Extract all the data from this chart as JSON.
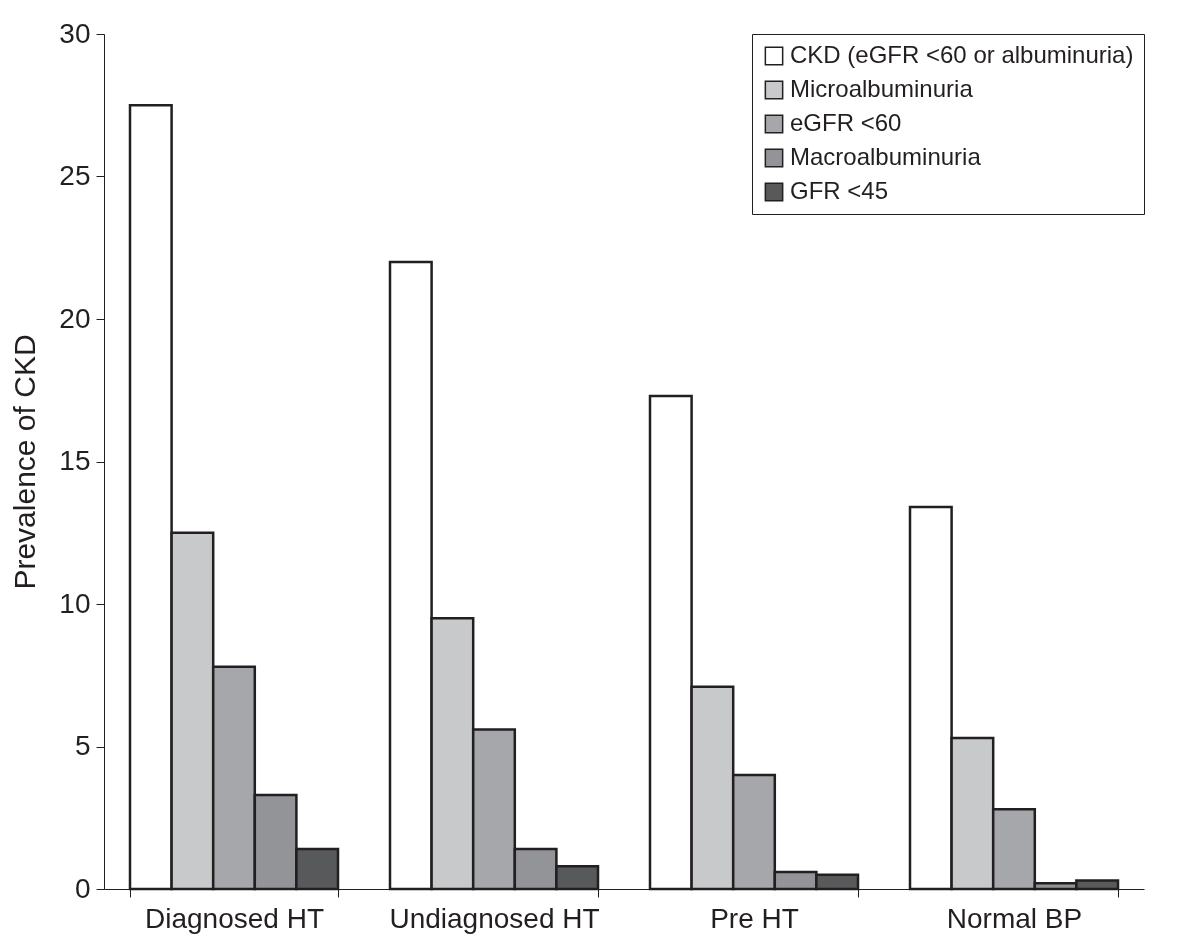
{
  "chart_data": {
    "type": "bar",
    "ylabel": "Prevalence of CKD",
    "categories": [
      "Diagnosed HT",
      "Undiagnosed HT",
      "Pre HT",
      "Normal BP"
    ],
    "series": [
      {
        "name": "CKD (eGFR <60 or albuminuria)",
        "color": "#ffffff",
        "values": [
          27.5,
          22.0,
          17.3,
          13.4
        ]
      },
      {
        "name": "Microalbuminuria",
        "color": "#c8c9cb",
        "values": [
          12.5,
          9.5,
          7.1,
          5.3
        ]
      },
      {
        "name": "eGFR <60",
        "color": "#a6a7aa",
        "values": [
          7.8,
          5.6,
          4.0,
          2.8
        ]
      },
      {
        "name": "Macroalbuminuria",
        "color": "#939498",
        "values": [
          3.3,
          1.4,
          0.6,
          0.2
        ]
      },
      {
        "name": "GFR <45",
        "color": "#58595b",
        "values": [
          1.4,
          0.8,
          0.5,
          0.3
        ]
      }
    ],
    "ylim": [
      0,
      30
    ],
    "yticks": [
      0,
      5,
      10,
      15,
      20,
      25,
      30
    ],
    "grid": false,
    "legend": "top right"
  }
}
